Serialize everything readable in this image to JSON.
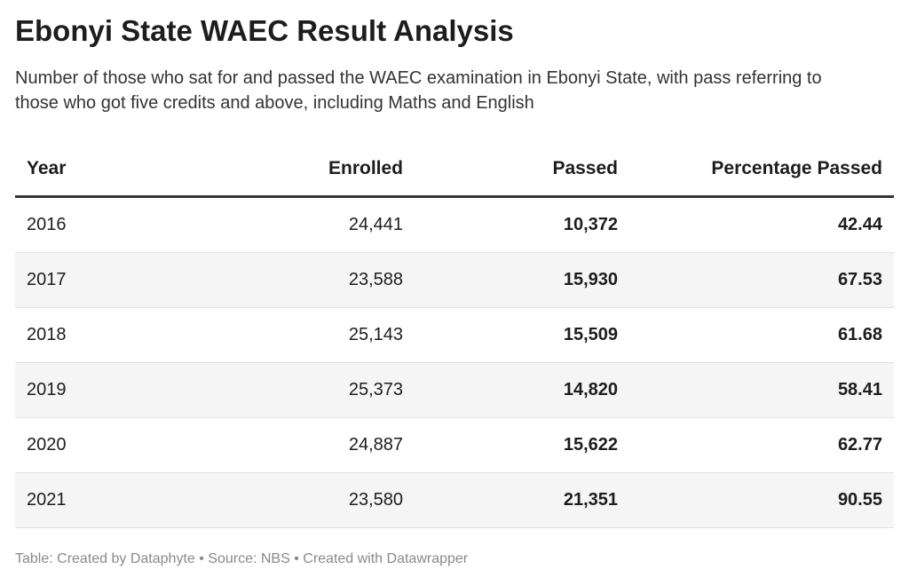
{
  "header": {
    "title": "Ebonyi State WAEC Result Analysis",
    "subtitle": "Number of those who sat for and passed the WAEC examination in Ebonyi State, with pass referring to those who got five credits and above, including Maths and English"
  },
  "table": {
    "columns": [
      "Year",
      "Enrolled",
      "Passed",
      "Percentage Passed"
    ],
    "rows": [
      [
        "2016",
        "24,441",
        "10,372",
        "42.44"
      ],
      [
        "2017",
        "23,588",
        "15,930",
        "67.53"
      ],
      [
        "2018",
        "25,143",
        "15,509",
        "61.68"
      ],
      [
        "2019",
        "25,373",
        "14,820",
        "58.41"
      ],
      [
        "2020",
        "24,887",
        "15,622",
        "62.77"
      ],
      [
        "2021",
        "23,580",
        "21,351",
        "90.55"
      ]
    ]
  },
  "footer": "Table: Created by Dataphyte • Source: NBS • Created with Datawrapper"
}
